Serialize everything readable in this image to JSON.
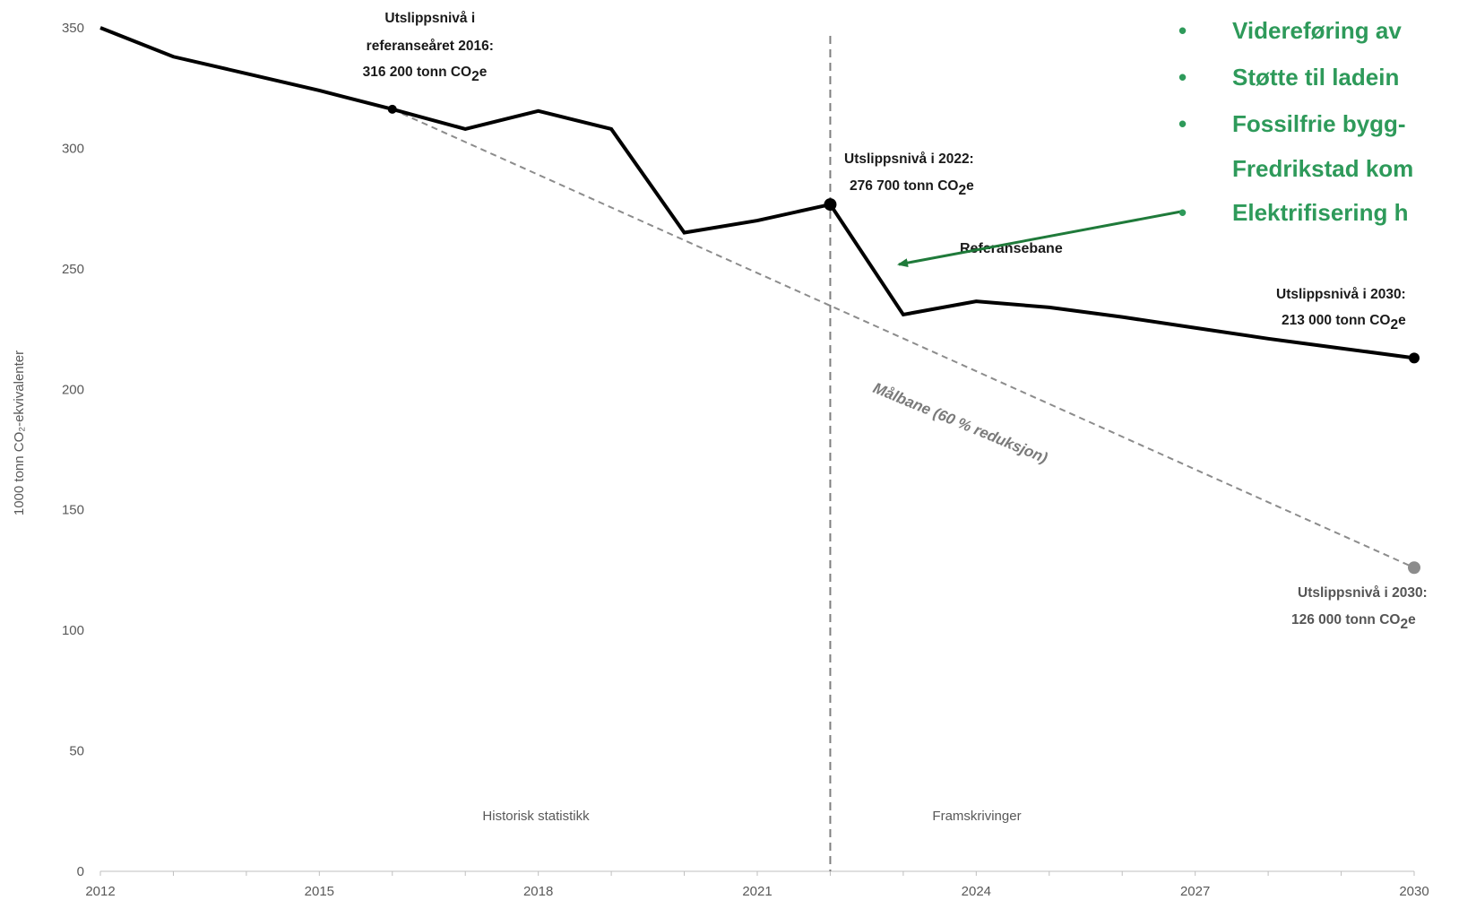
{
  "colors": {
    "accent_green": "#2e9a5a",
    "arrow_green": "#1f7a3a",
    "reference_line": "#000000",
    "target_line": "#8c8c8c",
    "divider": "#7f7f7f"
  },
  "chart_data": {
    "type": "line",
    "ylabel": "1000 tonn CO₂-ekvivalenter",
    "ylim": [
      0,
      350
    ],
    "xlim": [
      2012,
      2030
    ],
    "y_ticks": [
      "0",
      "50",
      "100",
      "150",
      "200",
      "250",
      "300",
      "350"
    ],
    "x_ticks": [
      "2012",
      "2015",
      "2018",
      "2021",
      "2024",
      "2027",
      "2030"
    ],
    "grid": false,
    "series": [
      {
        "name": "Referansebane",
        "x": [
          2012,
          2013,
          2014,
          2015,
          2016,
          2017,
          2018,
          2019,
          2020,
          2021,
          2022,
          2023,
          2024,
          2025,
          2026,
          2027,
          2028,
          2029,
          2030
        ],
        "values": [
          350,
          338,
          331,
          324,
          316.2,
          308,
          315.5,
          308,
          265,
          270,
          276.7,
          231,
          236.5,
          234,
          230,
          225.5,
          221,
          217,
          213
        ]
      },
      {
        "name": "Målbane (60 % reduksjon)",
        "x": [
          2016,
          2030
        ],
        "values": [
          316.2,
          126
        ]
      }
    ],
    "divider_year": 2022,
    "regions": {
      "left": "Historisk statistikk",
      "right": "Framskrivinger"
    },
    "annotations": {
      "a2016": [
        "Utslippsnivå i",
        "referanseåret 2016:",
        "316 200 tonn CO",
        "2",
        "e"
      ],
      "a2022": [
        "Utslippsnivå i 2022:",
        "276 700 tonn CO",
        "2",
        "e"
      ],
      "a2030ref": [
        "Utslippsnivå i 2030:",
        "213 000 tonn CO",
        "2",
        "e"
      ],
      "a2030target": [
        "Utslippsnivå i 2030:",
        "126 000 tonn CO",
        "2",
        "e"
      ],
      "target_label": "Målbane (60 % reduksjon)",
      "ref_label": "Referansebane"
    },
    "bullets": [
      "Videreføring av",
      "Støtte til ladein",
      "Fossilfrie bygg-",
      "Fredrikstad kom",
      "Elektrifisering h"
    ]
  }
}
